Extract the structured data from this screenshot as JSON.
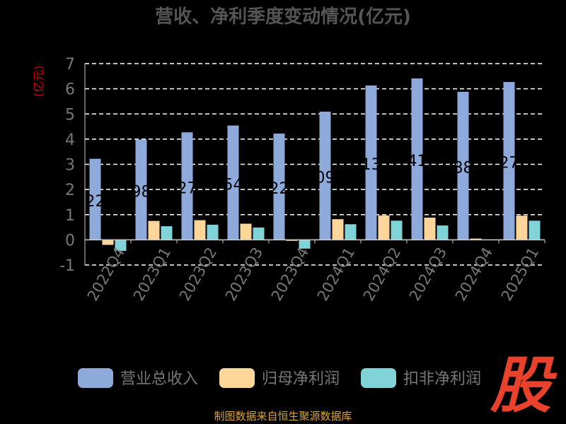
{
  "chart_data": {
    "type": "bar",
    "title": "营收、净利季度变动情况(亿元)",
    "ylabel": "(亿元)",
    "ylim": [
      -1,
      7
    ],
    "yticks": [
      -1,
      0,
      1,
      2,
      3,
      4,
      5,
      6,
      7
    ],
    "categories": [
      "2022Q4",
      "2023Q1",
      "2023Q2",
      "2023Q3",
      "2023Q4",
      "2024Q1",
      "2024Q2",
      "2024Q3",
      "2024Q4",
      "2025Q1"
    ],
    "series": [
      {
        "name": "营业总收入",
        "color": "#8eaadb",
        "values": [
          3.22,
          3.98,
          4.27,
          4.54,
          4.22,
          5.09,
          6.13,
          6.41,
          5.88,
          6.27
        ]
      },
      {
        "name": "归母净利润",
        "color": "#ffd699",
        "values": [
          -0.2,
          0.75,
          0.78,
          0.64,
          -0.04,
          0.82,
          0.97,
          0.88,
          0.05,
          0.96
        ]
      },
      {
        "name": "扣非净利润",
        "color": "#80d4d8",
        "values": [
          -0.44,
          0.54,
          0.6,
          0.49,
          -0.35,
          0.62,
          0.76,
          0.57,
          0.0,
          0.76
        ]
      }
    ],
    "data_labels_visible": [
      "22",
      "98",
      "27",
      "54",
      "22",
      "09",
      "13",
      "41",
      "88",
      "27"
    ],
    "grid": true,
    "legend_position": "bottom"
  },
  "footer": "制图数据来自恒生聚源数据库",
  "logo_text": "股",
  "colors": {
    "title": "#555555",
    "ylabel": "#cc0000",
    "axis": "#cccccc",
    "tick": "#777777",
    "grid": "#ffffff",
    "data_label": "#000000"
  }
}
